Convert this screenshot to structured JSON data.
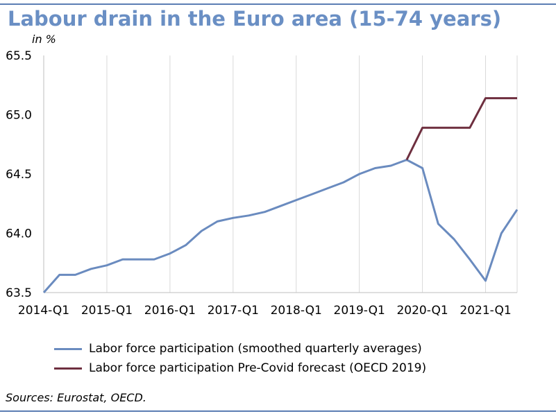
{
  "chart_data": {
    "type": "line",
    "title": "Labour drain in the Euro area (15-74 years)",
    "ylabel": "in %",
    "ylim": [
      63.5,
      65.5
    ],
    "yticks": [
      "63.5",
      "64.0",
      "64.5",
      "65.0",
      "65.5"
    ],
    "x_tick_labels": [
      "2014-Q1",
      "2015-Q1",
      "2016-Q1",
      "2017-Q1",
      "2018-Q1",
      "2019-Q1",
      "2020-Q1",
      "2021-Q1"
    ],
    "x": [
      "2014-Q1",
      "2014-Q2",
      "2014-Q3",
      "2014-Q4",
      "2015-Q1",
      "2015-Q2",
      "2015-Q3",
      "2015-Q4",
      "2016-Q1",
      "2016-Q2",
      "2016-Q3",
      "2016-Q4",
      "2017-Q1",
      "2017-Q2",
      "2017-Q3",
      "2017-Q4",
      "2018-Q1",
      "2018-Q2",
      "2018-Q3",
      "2018-Q4",
      "2019-Q1",
      "2019-Q2",
      "2019-Q3",
      "2019-Q4",
      "2020-Q1",
      "2020-Q2",
      "2020-Q3",
      "2020-Q4",
      "2021-Q1",
      "2021-Q2",
      "2021-Q3"
    ],
    "series": [
      {
        "name": "Labor force participation (smoothed quarterly averages)",
        "color": "#6a8bbf",
        "values": [
          63.5,
          63.65,
          63.65,
          63.7,
          63.73,
          63.78,
          63.78,
          63.78,
          63.83,
          63.9,
          64.02,
          64.1,
          64.13,
          64.15,
          64.18,
          64.23,
          64.28,
          64.33,
          64.38,
          64.43,
          64.5,
          64.55,
          64.57,
          64.62,
          64.55,
          64.08,
          63.95,
          63.78,
          63.6,
          64.0,
          64.2
        ]
      },
      {
        "name": "Labor force participation Pre-Covid forecast (OECD 2019)",
        "color": "#6e2f3f",
        "values": [
          null,
          null,
          null,
          null,
          null,
          null,
          null,
          null,
          null,
          null,
          null,
          null,
          null,
          null,
          null,
          null,
          null,
          null,
          null,
          null,
          null,
          null,
          null,
          64.62,
          64.89,
          64.89,
          64.89,
          64.89,
          65.14,
          65.14,
          65.14
        ]
      }
    ],
    "grid": "vertical",
    "legend_placement": "bottom"
  },
  "sources": "Sources: Eurostat, OECD."
}
